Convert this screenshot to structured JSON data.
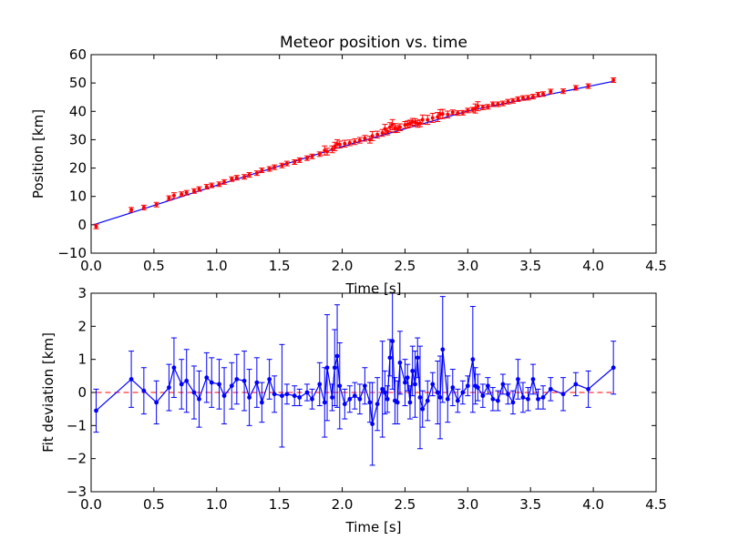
{
  "chart_data": [
    {
      "type": "scatter",
      "title": "Meteor position vs. time",
      "xlabel": "Time [s]",
      "ylabel": "Position [km]",
      "xlim": [
        0,
        4.5
      ],
      "ylim": [
        -10,
        60
      ],
      "xticks": [
        "0.0",
        "0.5",
        "1.0",
        "1.5",
        "2.0",
        "2.5",
        "3.0",
        "3.5",
        "4.0",
        "4.5"
      ],
      "yticks": [
        "−10",
        "0",
        "10",
        "20",
        "30",
        "40",
        "50",
        "60"
      ],
      "grid": false,
      "colors": {
        "points": "#ff0000",
        "fit": "#0000ff"
      },
      "series": [
        {
          "x": [
            0.04,
            0.32,
            0.42,
            0.52,
            0.62,
            0.66,
            0.72,
            0.76,
            0.82,
            0.86,
            0.92,
            0.96,
            1.02,
            1.06,
            1.12,
            1.16,
            1.22,
            1.26,
            1.32,
            1.36,
            1.42,
            1.46,
            1.52,
            1.56,
            1.62,
            1.66,
            1.72,
            1.76,
            1.82,
            1.86,
            1.88,
            1.92,
            1.94,
            1.96,
            1.98,
            2.02,
            2.06,
            2.1,
            2.14,
            2.18,
            2.22,
            2.24,
            2.28,
            2.32,
            2.34,
            2.36,
            2.38,
            2.4,
            2.42,
            2.44,
            2.46,
            2.5,
            2.52,
            2.54,
            2.56,
            2.58,
            2.6,
            2.62,
            2.64,
            2.68,
            2.72,
            2.76,
            2.78,
            2.8,
            2.84,
            2.88,
            2.92,
            2.96,
            3.0,
            3.04,
            3.06,
            3.08,
            3.12,
            3.16,
            3.2,
            3.24,
            3.28,
            3.32,
            3.36,
            3.4,
            3.44,
            3.48,
            3.52,
            3.56,
            3.6,
            3.66,
            3.76,
            3.86,
            3.96,
            4.16
          ],
          "y": [
            -0.6,
            5.3,
            6.1,
            7.1,
            9.4,
            10.3,
            10.8,
            11.3,
            11.9,
            12.6,
            13.4,
            13.9,
            14.3,
            15.1,
            16.1,
            16.6,
            16.9,
            17.6,
            18.2,
            19.2,
            19.7,
            20.3,
            20.9,
            21.6,
            22.1,
            22.8,
            23.5,
            24.1,
            24.9,
            26.2,
            25.8,
            26.6,
            27.6,
            28.5,
            28.3,
            28.6,
            28.9,
            29.3,
            29.8,
            30.5,
            30.0,
            31.3,
            31.8,
            32.4,
            33.8,
            32.9,
            34.4,
            35.3,
            34.1,
            33.8,
            34.4,
            35.2,
            35.4,
            35.7,
            36.3,
            36.2,
            35.6,
            35.8,
            37.1,
            37.0,
            37.7,
            38.0,
            39.0,
            39.1,
            38.9,
            39.7,
            39.4,
            39.5,
            40.3,
            40.6,
            41.0,
            41.8,
            41.4,
            41.6,
            42.5,
            42.5,
            42.8,
            43.4,
            43.7,
            44.3,
            44.7,
            44.8,
            45.2,
            45.9,
            46.1,
            47.0,
            47.1,
            48.3,
            48.9,
            51.0
          ],
          "yerr": [
            0.8,
            0.8,
            0.8,
            0.8,
            0.8,
            1.0,
            0.8,
            0.8,
            0.8,
            0.8,
            0.8,
            0.8,
            0.8,
            0.8,
            0.8,
            0.8,
            0.8,
            0.8,
            0.8,
            0.8,
            0.8,
            0.8,
            0.8,
            0.8,
            0.8,
            0.8,
            0.8,
            0.8,
            0.8,
            1.6,
            1.2,
            1.2,
            1.5,
            1.5,
            1.2,
            1.2,
            1.0,
            1.0,
            1.0,
            1.0,
            1.2,
            1.6,
            1.2,
            1.2,
            1.6,
            1.2,
            1.6,
            1.8,
            1.6,
            1.2,
            1.2,
            1.2,
            1.2,
            1.2,
            1.2,
            1.2,
            1.2,
            1.2,
            1.6,
            1.6,
            1.6,
            1.6,
            1.6,
            1.6,
            1.2,
            0.8,
            0.8,
            0.8,
            0.8,
            0.8,
            1.6,
            1.6,
            0.8,
            0.8,
            0.8,
            0.8,
            0.8,
            0.8,
            0.8,
            0.8,
            0.8,
            0.8,
            0.8,
            0.8,
            0.8,
            0.8,
            0.8,
            0.8,
            0.8,
            0.8
          ]
        },
        {
          "x": [
            0.02,
            1.0,
            2.0,
            3.0,
            4.15
          ],
          "y": [
            0.0,
            13.9,
            27.6,
            40.1,
            50.5
          ]
        }
      ]
    },
    {
      "type": "line",
      "xlabel": "Time [s]",
      "ylabel": "Fit deviation [km]",
      "xlim": [
        0,
        4.5
      ],
      "ylim": [
        -3,
        3
      ],
      "xticks": [
        "0.0",
        "0.5",
        "1.0",
        "1.5",
        "2.0",
        "2.5",
        "3.0",
        "3.5",
        "4.0",
        "4.5"
      ],
      "yticks": [
        "−3",
        "−2",
        "−1",
        "0",
        "1",
        "2",
        "3"
      ],
      "grid": false,
      "reference_line": 0,
      "colors": {
        "series": "#0000ff",
        "reference": "#ff0000"
      },
      "series": [
        {
          "x": [
            0.04,
            0.32,
            0.42,
            0.52,
            0.62,
            0.66,
            0.72,
            0.76,
            0.82,
            0.86,
            0.92,
            0.96,
            1.02,
            1.06,
            1.12,
            1.16,
            1.22,
            1.26,
            1.32,
            1.36,
            1.42,
            1.46,
            1.52,
            1.56,
            1.62,
            1.66,
            1.72,
            1.76,
            1.82,
            1.86,
            1.88,
            1.92,
            1.94,
            1.96,
            1.98,
            2.02,
            2.06,
            2.1,
            2.14,
            2.18,
            2.22,
            2.24,
            2.28,
            2.32,
            2.34,
            2.36,
            2.38,
            2.4,
            2.42,
            2.44,
            2.46,
            2.5,
            2.52,
            2.54,
            2.56,
            2.58,
            2.6,
            2.62,
            2.64,
            2.68,
            2.72,
            2.76,
            2.78,
            2.8,
            2.84,
            2.88,
            2.92,
            2.96,
            3.0,
            3.04,
            3.06,
            3.08,
            3.12,
            3.16,
            3.2,
            3.24,
            3.28,
            3.32,
            3.36,
            3.4,
            3.44,
            3.48,
            3.52,
            3.56,
            3.6,
            3.66,
            3.76,
            3.86,
            3.96,
            4.16
          ],
          "y": [
            -0.55,
            0.4,
            0.05,
            -0.3,
            0.15,
            0.75,
            0.25,
            0.35,
            0.0,
            -0.2,
            0.45,
            0.3,
            0.25,
            -0.1,
            0.2,
            0.4,
            0.35,
            -0.15,
            0.3,
            -0.3,
            0.4,
            -0.05,
            -0.1,
            -0.05,
            -0.1,
            -0.15,
            0.0,
            -0.2,
            0.25,
            -0.3,
            0.75,
            -0.15,
            0.75,
            1.1,
            0.2,
            -0.35,
            -0.2,
            -0.1,
            -0.2,
            0.2,
            -0.3,
            -0.95,
            -0.35,
            0.1,
            0.0,
            -0.2,
            1.05,
            1.55,
            -0.25,
            -0.3,
            0.9,
            0.3,
            0.45,
            -0.3,
            0.65,
            0.25,
            1.05,
            -0.15,
            -0.5,
            -0.25,
            0.25,
            0.0,
            -0.15,
            1.3,
            -0.2,
            0.15,
            -0.25,
            0.0,
            0.2,
            1.0,
            0.2,
            0.15,
            -0.1,
            0.2,
            -0.2,
            -0.25,
            0.25,
            -0.05,
            -0.3,
            0.4,
            -0.15,
            -0.2,
            0.4,
            -0.2,
            -0.15,
            0.1,
            -0.05,
            0.25,
            0.1,
            0.75
          ],
          "yerr": [
            0.65,
            0.85,
            0.7,
            0.65,
            0.7,
            0.9,
            0.75,
            0.95,
            0.8,
            0.85,
            0.75,
            0.75,
            0.75,
            0.85,
            0.7,
            0.75,
            0.9,
            0.85,
            0.75,
            0.6,
            0.6,
            0.55,
            1.55,
            0.3,
            0.3,
            0.25,
            0.25,
            0.3,
            0.65,
            1.05,
            1.6,
            0.4,
            1.15,
            1.55,
            1.3,
            0.45,
            0.4,
            0.4,
            0.45,
            0.55,
            0.6,
            1.25,
            0.8,
            1.45,
            0.65,
            0.4,
            0.55,
            1.45,
            0.7,
            0.65,
            0.95,
            0.7,
            0.4,
            0.5,
            0.75,
            1.0,
            0.6,
            1.55,
            0.55,
            0.6,
            0.35,
            0.95,
            1.25,
            1.6,
            0.7,
            0.55,
            0.35,
            0.35,
            0.3,
            1.6,
            0.55,
            0.4,
            0.35,
            0.25,
            0.35,
            0.3,
            0.3,
            0.3,
            0.35,
            0.6,
            0.45,
            0.35,
            0.45,
            0.3,
            0.35,
            0.35,
            0.5,
            0.35,
            0.55,
            0.8
          ]
        }
      ]
    }
  ]
}
